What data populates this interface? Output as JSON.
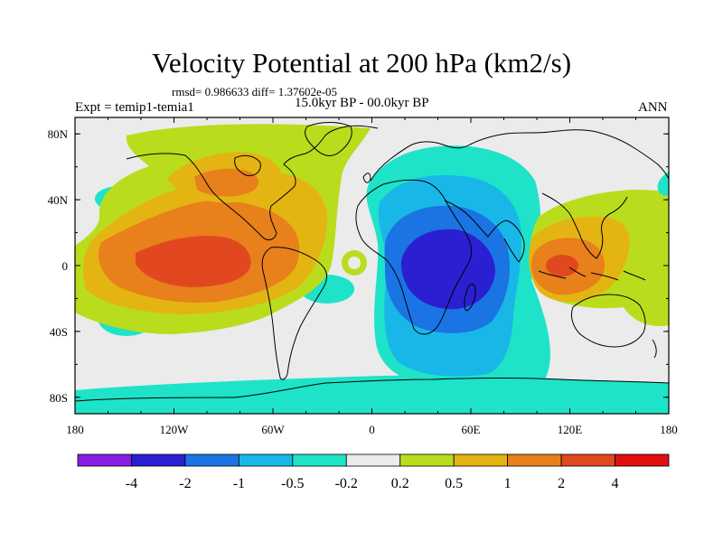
{
  "title": "Velocity Potential at 200 hPa (km2/s)",
  "stats_line": "rmsd= 0.986633 diff= 1.37602e-05",
  "left_label": "Expt = temip1-temia1",
  "center_label": "15.0kyr BP - 00.0kyr BP",
  "right_label": "ANN",
  "x_ticks": [
    "180",
    "120W",
    "60W",
    "0",
    "60E",
    "120E",
    "180"
  ],
  "y_ticks": [
    "80N",
    "40N",
    "0",
    "40S",
    "80S"
  ],
  "colorbar": {
    "labels": [
      "-4",
      "-2",
      "-1",
      "-0.5",
      "-0.2",
      "0.2",
      "0.5",
      "1",
      "2",
      "4"
    ],
    "colors": [
      "#8a1de3",
      "#2b1fd2",
      "#1a74e3",
      "#19b7e8",
      "#1ee3c9",
      "#ebebeb",
      "#b9dd1c",
      "#e4b512",
      "#e8801c",
      "#e2481f",
      "#e10f0f"
    ]
  }
}
